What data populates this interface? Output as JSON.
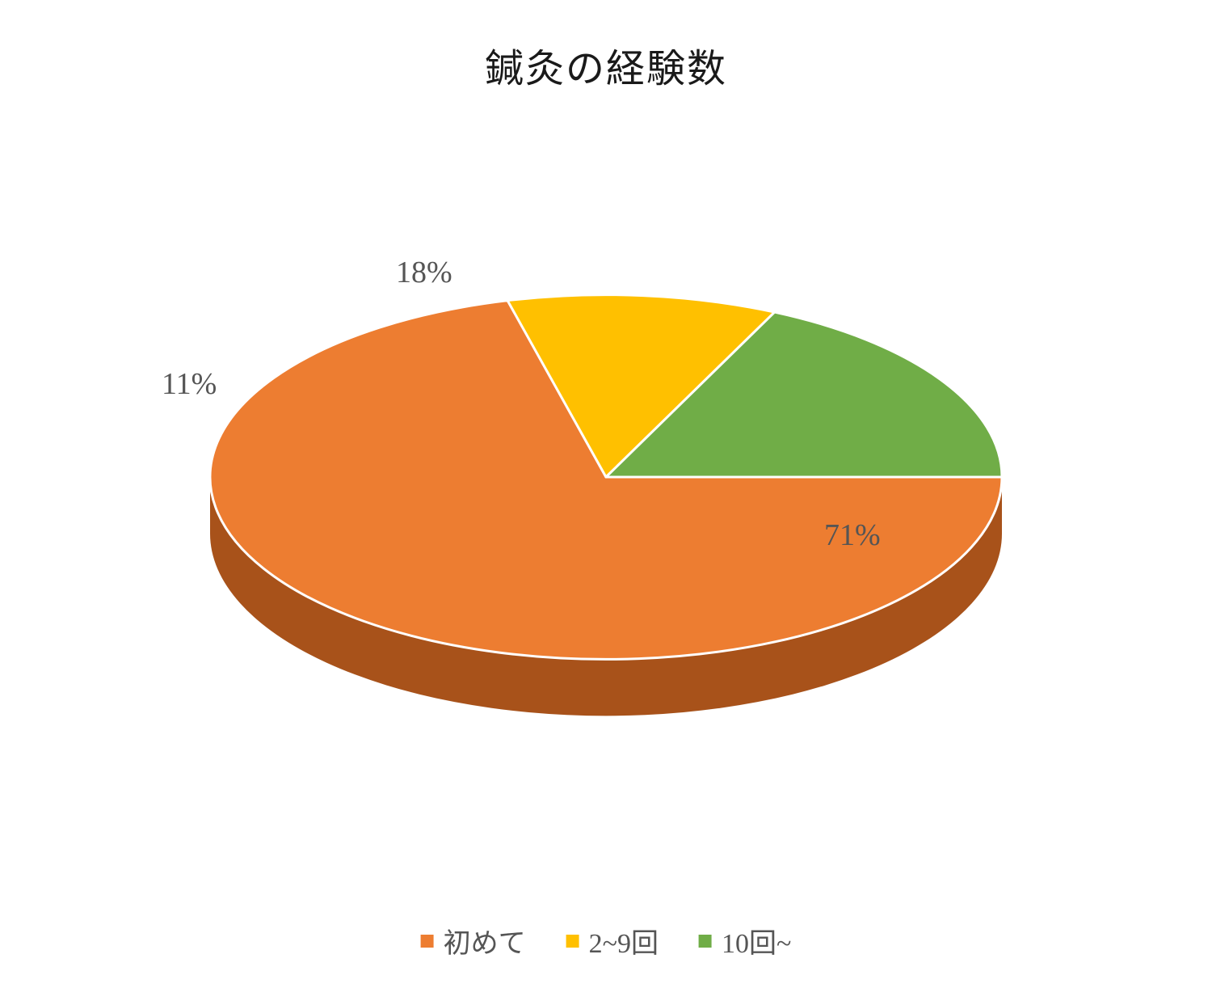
{
  "chart": {
    "type": "pie-3d",
    "title": "鍼灸の経験数",
    "title_fontsize": 48,
    "title_color": "#1a1a1a",
    "background_color": "#ffffff",
    "slice_stroke": "#ffffff",
    "slice_stroke_width": 3,
    "depth": 70,
    "tilt": 0.46,
    "rotation_start_deg": 90,
    "series": [
      {
        "label": "初めて",
        "value": 71,
        "display": "71%",
        "color": "#ed7d31",
        "side_color": "#a8521a"
      },
      {
        "label": "2~9回",
        "value": 11,
        "display": "11%",
        "color": "#ffc000",
        "side_color": "#b38600"
      },
      {
        "label": "10回~",
        "value": 18,
        "display": "18%",
        "color": "#70ad47",
        "side_color": "#4e7a31"
      }
    ],
    "data_label_fontsize": 38,
    "data_label_color": "#555555",
    "legend_fontsize": 34,
    "legend_marker_size": 16,
    "legend_text_color": "#555555"
  }
}
